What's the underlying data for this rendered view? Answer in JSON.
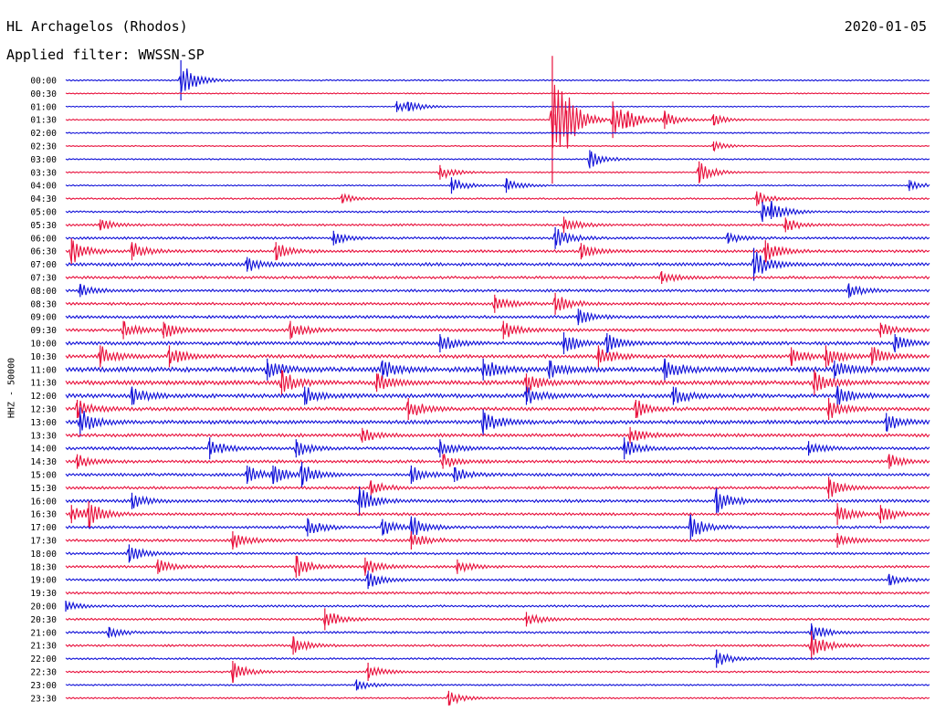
{
  "header": {
    "station": "HL Archagelos (Rhodos)",
    "date": "2020-01-05",
    "filter": "Applied filter: WWSSN-SP"
  },
  "chart_data": {
    "type": "line",
    "title": "HL Archagelos (Rhodos)",
    "subtitle": "Applied filter: WWSSN-SP",
    "ylabel": "HHZ - 50000",
    "xlabel": "",
    "grid": false,
    "colors": {
      "even_rows": "#1010d8",
      "odd_rows": "#e8103c"
    },
    "row_labels": [
      "00:00",
      "00:30",
      "01:00",
      "01:30",
      "02:00",
      "02:30",
      "03:00",
      "03:30",
      "04:00",
      "04:30",
      "05:00",
      "05:30",
      "06:00",
      "06:30",
      "07:00",
      "07:30",
      "08:00",
      "08:30",
      "09:00",
      "09:30",
      "10:00",
      "10:30",
      "11:00",
      "11:30",
      "12:00",
      "12:30",
      "13:00",
      "13:30",
      "14:00",
      "14:30",
      "15:00",
      "15:30",
      "16:00",
      "16:30",
      "17:00",
      "17:30",
      "18:00",
      "18:30",
      "19:00",
      "19:30",
      "20:00",
      "20:30",
      "21:00",
      "21:30",
      "22:00",
      "22:30",
      "23:00",
      "23:30"
    ],
    "minutes_per_row": 30,
    "noise_level": [
      0.5,
      0.4,
      0.4,
      0.5,
      0.5,
      0.4,
      0.5,
      0.5,
      0.5,
      0.6,
      0.7,
      0.8,
      0.9,
      1.0,
      1.2,
      1.0,
      1.0,
      1.0,
      1.1,
      1.1,
      1.3,
      1.3,
      1.8,
      1.6,
      1.5,
      1.3,
      1.4,
      1.2,
      1.1,
      1.1,
      1.1,
      1.0,
      1.1,
      1.0,
      1.0,
      1.0,
      0.9,
      0.9,
      0.9,
      0.9,
      0.8,
      0.8,
      0.8,
      0.8,
      0.7,
      0.7,
      0.6,
      0.6
    ],
    "events": [
      {
        "row": 0,
        "minute": 4.0,
        "amp": 22
      },
      {
        "row": 2,
        "minute": 11.5,
        "amp": 6
      },
      {
        "row": 2,
        "minute": 11.9,
        "amp": 5
      },
      {
        "row": 3,
        "minute": 17.0,
        "amp": 6
      },
      {
        "row": 3,
        "minute": 17.4,
        "amp": 10
      },
      {
        "row": 3,
        "minute": 19.0,
        "amp": 20
      },
      {
        "row": 3,
        "minute": 19.5,
        "amp": 8
      },
      {
        "row": 3,
        "minute": 20.8,
        "amp": 10
      },
      {
        "row": 3,
        "minute": 22.5,
        "amp": 6
      },
      {
        "row": 3,
        "minute": 16.9,
        "amp": 70
      },
      {
        "row": 5,
        "minute": 22.5,
        "amp": 5
      },
      {
        "row": 6,
        "minute": 18.2,
        "amp": 10
      },
      {
        "row": 7,
        "minute": 13.0,
        "amp": 8
      },
      {
        "row": 7,
        "minute": 22.0,
        "amp": 12
      },
      {
        "row": 8,
        "minute": 13.4,
        "amp": 9
      },
      {
        "row": 8,
        "minute": 15.3,
        "amp": 8
      },
      {
        "row": 8,
        "minute": 29.3,
        "amp": 6
      },
      {
        "row": 9,
        "minute": 9.6,
        "amp": 5
      },
      {
        "row": 9,
        "minute": 24.0,
        "amp": 8
      },
      {
        "row": 10,
        "minute": 24.2,
        "amp": 11
      },
      {
        "row": 10,
        "minute": 24.5,
        "amp": 8
      },
      {
        "row": 11,
        "minute": 1.2,
        "amp": 6
      },
      {
        "row": 11,
        "minute": 17.3,
        "amp": 9
      },
      {
        "row": 11,
        "minute": 25.0,
        "amp": 8
      },
      {
        "row": 12,
        "minute": 9.3,
        "amp": 8
      },
      {
        "row": 12,
        "minute": 17.0,
        "amp": 12
      },
      {
        "row": 12,
        "minute": 23.0,
        "amp": 6
      },
      {
        "row": 13,
        "minute": 0.2,
        "amp": 14
      },
      {
        "row": 13,
        "minute": 2.3,
        "amp": 10
      },
      {
        "row": 13,
        "minute": 7.3,
        "amp": 10
      },
      {
        "row": 13,
        "minute": 17.9,
        "amp": 9
      },
      {
        "row": 13,
        "minute": 24.3,
        "amp": 12
      },
      {
        "row": 14,
        "minute": 6.3,
        "amp": 8
      },
      {
        "row": 14,
        "minute": 23.9,
        "amp": 18
      },
      {
        "row": 15,
        "minute": 20.7,
        "amp": 7
      },
      {
        "row": 16,
        "minute": 0.5,
        "amp": 7
      },
      {
        "row": 16,
        "minute": 27.2,
        "amp": 8
      },
      {
        "row": 17,
        "minute": 14.9,
        "amp": 10
      },
      {
        "row": 17,
        "minute": 17.0,
        "amp": 12
      },
      {
        "row": 18,
        "minute": 17.8,
        "amp": 9
      },
      {
        "row": 19,
        "minute": 2.0,
        "amp": 10
      },
      {
        "row": 19,
        "minute": 3.4,
        "amp": 9
      },
      {
        "row": 19,
        "minute": 7.8,
        "amp": 10
      },
      {
        "row": 19,
        "minute": 15.2,
        "amp": 10
      },
      {
        "row": 19,
        "minute": 28.3,
        "amp": 8
      },
      {
        "row": 20,
        "minute": 13.0,
        "amp": 10
      },
      {
        "row": 20,
        "minute": 17.3,
        "amp": 12
      },
      {
        "row": 20,
        "minute": 18.8,
        "amp": 11
      },
      {
        "row": 20,
        "minute": 28.8,
        "amp": 10
      },
      {
        "row": 21,
        "minute": 1.2,
        "amp": 12
      },
      {
        "row": 21,
        "minute": 3.6,
        "amp": 12
      },
      {
        "row": 21,
        "minute": 18.5,
        "amp": 12
      },
      {
        "row": 21,
        "minute": 25.2,
        "amp": 10
      },
      {
        "row": 21,
        "minute": 26.4,
        "amp": 12
      },
      {
        "row": 21,
        "minute": 28.0,
        "amp": 10
      },
      {
        "row": 22,
        "minute": 7.0,
        "amp": 12
      },
      {
        "row": 22,
        "minute": 11.0,
        "amp": 10
      },
      {
        "row": 22,
        "minute": 14.5,
        "amp": 12
      },
      {
        "row": 22,
        "minute": 16.8,
        "amp": 10
      },
      {
        "row": 22,
        "minute": 20.8,
        "amp": 12
      },
      {
        "row": 22,
        "minute": 26.7,
        "amp": 10
      },
      {
        "row": 23,
        "minute": 7.5,
        "amp": 14
      },
      {
        "row": 23,
        "minute": 10.8,
        "amp": 10
      },
      {
        "row": 23,
        "minute": 16.0,
        "amp": 10
      },
      {
        "row": 23,
        "minute": 26.0,
        "amp": 14
      },
      {
        "row": 24,
        "minute": 2.3,
        "amp": 10
      },
      {
        "row": 24,
        "minute": 8.3,
        "amp": 10
      },
      {
        "row": 24,
        "minute": 16.0,
        "amp": 10
      },
      {
        "row": 24,
        "minute": 21.1,
        "amp": 10
      },
      {
        "row": 24,
        "minute": 26.8,
        "amp": 10
      },
      {
        "row": 25,
        "minute": 0.4,
        "amp": 10
      },
      {
        "row": 25,
        "minute": 11.9,
        "amp": 12
      },
      {
        "row": 25,
        "minute": 19.8,
        "amp": 10
      },
      {
        "row": 25,
        "minute": 26.5,
        "amp": 12
      },
      {
        "row": 26,
        "minute": 0.5,
        "amp": 16
      },
      {
        "row": 26,
        "minute": 14.5,
        "amp": 14
      },
      {
        "row": 26,
        "minute": 28.5,
        "amp": 10
      },
      {
        "row": 27,
        "minute": 10.3,
        "amp": 8
      },
      {
        "row": 27,
        "minute": 19.6,
        "amp": 9
      },
      {
        "row": 28,
        "minute": 5.0,
        "amp": 12
      },
      {
        "row": 28,
        "minute": 8.0,
        "amp": 10
      },
      {
        "row": 28,
        "minute": 13.0,
        "amp": 10
      },
      {
        "row": 28,
        "minute": 19.4,
        "amp": 12
      },
      {
        "row": 28,
        "minute": 25.8,
        "amp": 8
      },
      {
        "row": 29,
        "minute": 0.4,
        "amp": 8
      },
      {
        "row": 29,
        "minute": 13.1,
        "amp": 8
      },
      {
        "row": 29,
        "minute": 28.6,
        "amp": 8
      },
      {
        "row": 30,
        "minute": 6.3,
        "amp": 10
      },
      {
        "row": 30,
        "minute": 7.2,
        "amp": 10
      },
      {
        "row": 30,
        "minute": 8.2,
        "amp": 14
      },
      {
        "row": 30,
        "minute": 12.0,
        "amp": 10
      },
      {
        "row": 30,
        "minute": 13.5,
        "amp": 8
      },
      {
        "row": 31,
        "minute": 10.6,
        "amp": 8
      },
      {
        "row": 31,
        "minute": 26.5,
        "amp": 12
      },
      {
        "row": 32,
        "minute": 2.3,
        "amp": 9
      },
      {
        "row": 32,
        "minute": 10.2,
        "amp": 16
      },
      {
        "row": 32,
        "minute": 22.6,
        "amp": 14
      },
      {
        "row": 33,
        "minute": 0.2,
        "amp": 10
      },
      {
        "row": 33,
        "minute": 0.8,
        "amp": 14
      },
      {
        "row": 33,
        "minute": 26.8,
        "amp": 12
      },
      {
        "row": 33,
        "minute": 28.3,
        "amp": 10
      },
      {
        "row": 34,
        "minute": 8.4,
        "amp": 10
      },
      {
        "row": 34,
        "minute": 11.0,
        "amp": 9
      },
      {
        "row": 34,
        "minute": 12.0,
        "amp": 12
      },
      {
        "row": 34,
        "minute": 21.7,
        "amp": 14
      },
      {
        "row": 35,
        "minute": 5.8,
        "amp": 10
      },
      {
        "row": 35,
        "minute": 12.0,
        "amp": 10
      },
      {
        "row": 35,
        "minute": 26.8,
        "amp": 8
      },
      {
        "row": 36,
        "minute": 2.2,
        "amp": 10
      },
      {
        "row": 37,
        "minute": 3.2,
        "amp": 8
      },
      {
        "row": 37,
        "minute": 8.0,
        "amp": 12
      },
      {
        "row": 37,
        "minute": 10.4,
        "amp": 10
      },
      {
        "row": 37,
        "minute": 13.6,
        "amp": 8
      },
      {
        "row": 38,
        "minute": 10.5,
        "amp": 10
      },
      {
        "row": 38,
        "minute": 28.6,
        "amp": 6
      },
      {
        "row": 40,
        "minute": 0.0,
        "amp": 6
      },
      {
        "row": 41,
        "minute": 9.0,
        "amp": 12
      },
      {
        "row": 41,
        "minute": 16.0,
        "amp": 8
      },
      {
        "row": 42,
        "minute": 1.5,
        "amp": 6
      },
      {
        "row": 42,
        "minute": 25.9,
        "amp": 10
      },
      {
        "row": 43,
        "minute": 7.9,
        "amp": 10
      },
      {
        "row": 43,
        "minute": 25.9,
        "amp": 16
      },
      {
        "row": 44,
        "minute": 22.6,
        "amp": 10
      },
      {
        "row": 45,
        "minute": 5.8,
        "amp": 12
      },
      {
        "row": 45,
        "minute": 10.5,
        "amp": 10
      },
      {
        "row": 46,
        "minute": 10.1,
        "amp": 6
      },
      {
        "row": 47,
        "minute": 13.3,
        "amp": 8
      }
    ]
  }
}
